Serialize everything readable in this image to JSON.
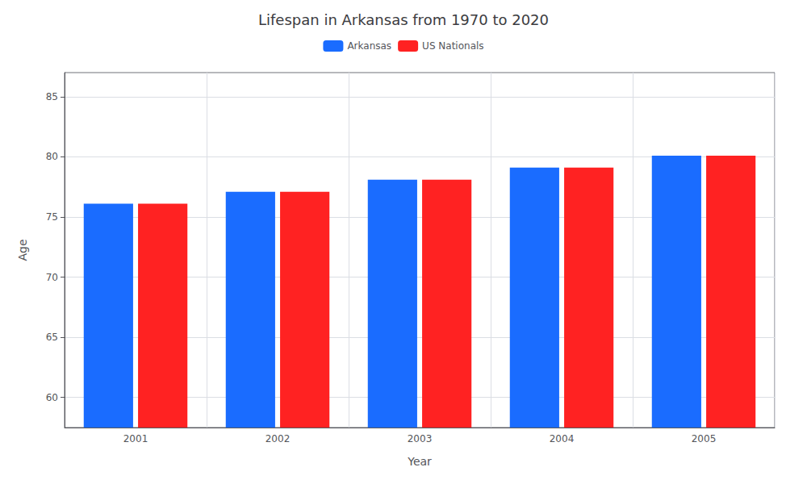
{
  "chart_data": {
    "type": "bar",
    "title": "Lifespan in Arkansas from 1970 to 2020",
    "x_label": "Year",
    "y_label": "Age",
    "categories": [
      "2001",
      "2002",
      "2003",
      "2004",
      "2005"
    ],
    "series": [
      {
        "name": "Arkansas",
        "color": "#1a6cff",
        "values": [
          76.1,
          77.1,
          78.1,
          79.1,
          80.1
        ]
      },
      {
        "name": "US Nationals",
        "color": "#ff2222",
        "values": [
          76.1,
          77.1,
          78.1,
          79.1,
          80.1
        ]
      }
    ],
    "ylim": [
      57.5,
      87
    ],
    "yticks": [
      60,
      65,
      70,
      75,
      80,
      85
    ],
    "grid": true,
    "legend": "top"
  }
}
